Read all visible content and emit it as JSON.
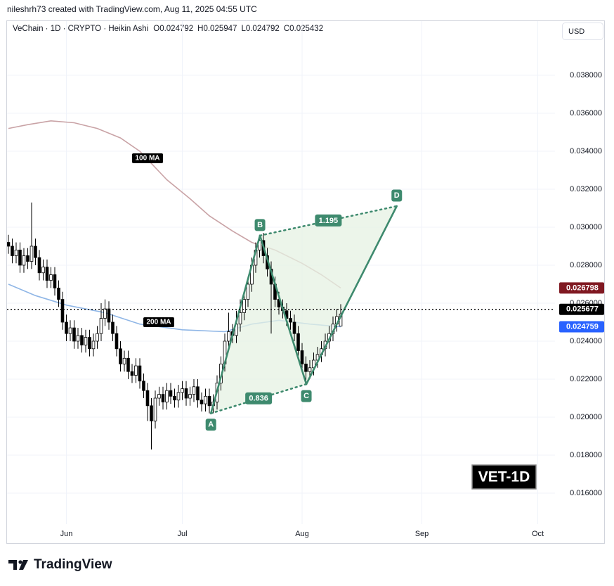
{
  "header": {
    "attribution": "nileshrh73 created with TradingView.com, Aug 11, 2025 04:55 UTC",
    "symbol": "VeChain · 1D · CRYPTO · Heikin Ashi",
    "ohlc_labels": [
      "O",
      "H",
      "L",
      "C"
    ],
    "currency": "USD"
  },
  "chart_data": {
    "type": "candlestick",
    "up_color": "#ffffff",
    "down_color": "#000000",
    "grid": true,
    "xlim": [
      -0.36,
      141.45
    ],
    "xticks": [
      {
        "value": 15,
        "label": "Jun"
      },
      {
        "value": 45,
        "label": "Jul"
      },
      {
        "value": 76,
        "label": "Aug"
      },
      {
        "value": 107,
        "label": "Sep"
      },
      {
        "value": 137,
        "label": "Oct"
      }
    ],
    "ylim": [
      0.01437,
      0.04085
    ],
    "yticks": [
      {
        "value": 0.016,
        "label": "0.016000"
      },
      {
        "value": 0.018,
        "label": "0.018000"
      },
      {
        "value": 0.02,
        "label": "0.020000"
      },
      {
        "value": 0.022,
        "label": "0.022000"
      },
      {
        "value": 0.024,
        "label": "0.024000"
      },
      {
        "value": 0.026,
        "label": "0.026000"
      },
      {
        "value": 0.028,
        "label": "0.028000"
      },
      {
        "value": 0.03,
        "label": "0.030000"
      },
      {
        "value": 0.032,
        "label": "0.032000"
      },
      {
        "value": 0.034,
        "label": "0.034000"
      },
      {
        "value": 0.036,
        "label": "0.036000"
      },
      {
        "value": 0.038,
        "label": "0.038000"
      }
    ],
    "open": [
      0.0292,
      0.029,
      0.0285,
      0.0288,
      0.028,
      0.0285,
      0.0282,
      0.029,
      0.0284,
      0.0276,
      0.0279,
      0.0272,
      0.0275,
      0.0268,
      0.0262,
      0.025,
      0.0244,
      0.0247,
      0.024,
      0.0243,
      0.0238,
      0.0242,
      0.0236,
      0.024,
      0.0244,
      0.0252,
      0.0257,
      0.025,
      0.0244,
      0.0236,
      0.0228,
      0.0231,
      0.0224,
      0.0222,
      0.0227,
      0.0219,
      0.0214,
      0.0206,
      0.0198,
      0.021,
      0.0212,
      0.0208,
      0.0214,
      0.0211,
      0.0209,
      0.0213,
      0.0215,
      0.021,
      0.0212,
      0.0216,
      0.0209,
      0.0207,
      0.0211,
      0.0206,
      0.0208,
      0.0218,
      0.0228,
      0.024,
      0.0245,
      0.0243,
      0.0249,
      0.0255,
      0.0262,
      0.027,
      0.028,
      0.0288,
      0.0293,
      0.0285,
      0.0278,
      0.027,
      0.0262,
      0.0258,
      0.0256,
      0.0252,
      0.025,
      0.0244,
      0.0235,
      0.0228,
      0.0224,
      0.0226,
      0.023,
      0.0233,
      0.0236,
      0.024,
      0.0244,
      0.0249,
      0.024792
    ],
    "high": [
      0.0296,
      0.0294,
      0.0292,
      0.0292,
      0.0289,
      0.0289,
      0.0313,
      0.0294,
      0.0288,
      0.0283,
      0.0283,
      0.0279,
      0.0279,
      0.0272,
      0.0266,
      0.0254,
      0.0251,
      0.0251,
      0.0247,
      0.0247,
      0.0246,
      0.0246,
      0.0244,
      0.0248,
      0.026,
      0.0262,
      0.0261,
      0.0254,
      0.0248,
      0.024,
      0.0235,
      0.0235,
      0.0228,
      0.0231,
      0.0231,
      0.0223,
      0.0218,
      0.021,
      0.0214,
      0.0216,
      0.0216,
      0.0218,
      0.0218,
      0.0215,
      0.0217,
      0.0219,
      0.0219,
      0.0216,
      0.022,
      0.022,
      0.0213,
      0.0215,
      0.0215,
      0.0212,
      0.0222,
      0.0232,
      0.0244,
      0.0255,
      0.0249,
      0.0256,
      0.0262,
      0.0266,
      0.0274,
      0.0284,
      0.0292,
      0.0296,
      0.0297,
      0.0289,
      0.0282,
      0.0274,
      0.0266,
      0.0262,
      0.026,
      0.0256,
      0.0254,
      0.0248,
      0.0239,
      0.0232,
      0.023,
      0.0234,
      0.0237,
      0.024,
      0.0244,
      0.0248,
      0.0253,
      0.0257,
      0.025947
    ],
    "low": [
      0.0286,
      0.0281,
      0.0281,
      0.0276,
      0.0276,
      0.0278,
      0.0278,
      0.028,
      0.0272,
      0.0272,
      0.0268,
      0.0268,
      0.0264,
      0.0258,
      0.0246,
      0.024,
      0.024,
      0.0236,
      0.0236,
      0.0234,
      0.0234,
      0.0232,
      0.0232,
      0.0236,
      0.024,
      0.0248,
      0.0246,
      0.024,
      0.0232,
      0.0224,
      0.0224,
      0.022,
      0.0218,
      0.0218,
      0.0215,
      0.021,
      0.0198,
      0.0183,
      0.0194,
      0.0206,
      0.0204,
      0.0204,
      0.0207,
      0.0205,
      0.0205,
      0.0209,
      0.0206,
      0.0206,
      0.0208,
      0.0205,
      0.0203,
      0.0203,
      0.0202,
      0.0202,
      0.0204,
      0.0214,
      0.0224,
      0.0236,
      0.0239,
      0.0239,
      0.0245,
      0.0251,
      0.0258,
      0.0266,
      0.0276,
      0.0284,
      0.0281,
      0.0274,
      0.0244,
      0.0258,
      0.0254,
      0.0252,
      0.0248,
      0.0246,
      0.024,
      0.0231,
      0.0224,
      0.0218,
      0.022,
      0.0222,
      0.0226,
      0.0229,
      0.0232,
      0.0236,
      0.024,
      0.0245,
      0.024792
    ],
    "close": [
      0.029,
      0.0285,
      0.0288,
      0.028,
      0.0285,
      0.0282,
      0.029,
      0.0284,
      0.0276,
      0.0279,
      0.0272,
      0.0275,
      0.0268,
      0.0262,
      0.025,
      0.0244,
      0.0247,
      0.024,
      0.0243,
      0.0238,
      0.0242,
      0.0236,
      0.024,
      0.0244,
      0.0252,
      0.0257,
      0.025,
      0.0244,
      0.0236,
      0.0228,
      0.0231,
      0.0224,
      0.0222,
      0.0227,
      0.0219,
      0.0214,
      0.0206,
      0.0198,
      0.021,
      0.0212,
      0.0208,
      0.0214,
      0.0211,
      0.0209,
      0.0213,
      0.0215,
      0.021,
      0.0212,
      0.0216,
      0.0209,
      0.0207,
      0.0211,
      0.0206,
      0.0208,
      0.0218,
      0.0228,
      0.024,
      0.0245,
      0.0243,
      0.0249,
      0.0255,
      0.0262,
      0.027,
      0.028,
      0.0288,
      0.0293,
      0.0285,
      0.0278,
      0.027,
      0.0262,
      0.0258,
      0.0256,
      0.0252,
      0.025,
      0.0244,
      0.0235,
      0.0228,
      0.0224,
      0.0226,
      0.023,
      0.0233,
      0.0236,
      0.024,
      0.0244,
      0.0249,
      0.0253,
      0.025432
    ],
    "series": [
      {
        "name": "100 MA",
        "color": "#c9a3a6",
        "badge_color": "#801922",
        "x": [
          0,
          5,
          11,
          17,
          23,
          29,
          34,
          41,
          47,
          52,
          58,
          63,
          69,
          76,
          81,
          86
        ],
        "values": [
          0.0352,
          0.0354,
          0.0356,
          0.0355,
          0.0352,
          0.0347,
          0.034,
          0.0325,
          0.0315,
          0.0306,
          0.0298,
          0.0292,
          0.0288,
          0.0281,
          0.0275,
          0.026798
        ]
      },
      {
        "name": "200 MA",
        "color": "#8fb6e6",
        "badge_color": "#2962ff",
        "x": [
          0,
          7,
          15,
          25,
          34,
          45,
          56,
          63,
          70,
          78,
          86
        ],
        "values": [
          0.027,
          0.0264,
          0.0259,
          0.0255,
          0.0249,
          0.0246,
          0.0245,
          0.0249,
          0.0251,
          0.0249,
          0.024759
        ]
      }
    ],
    "last_price": 0.025677,
    "pattern": {
      "color": "#3e8a6e",
      "fill": "#e6f2e3",
      "points": [
        {
          "label": "A",
          "x": 52.4,
          "y": 0.0202
        },
        {
          "label": "B",
          "x": 65.1,
          "y": 0.02956
        },
        {
          "label": "C",
          "x": 77.1,
          "y": 0.02174
        },
        {
          "label": "D",
          "x": 100.5,
          "y": 0.03111
        }
      ],
      "ratios": [
        0.836,
        1.195
      ]
    },
    "watermark": "VET-1D"
  },
  "footer": {
    "brand": "TradingView"
  }
}
